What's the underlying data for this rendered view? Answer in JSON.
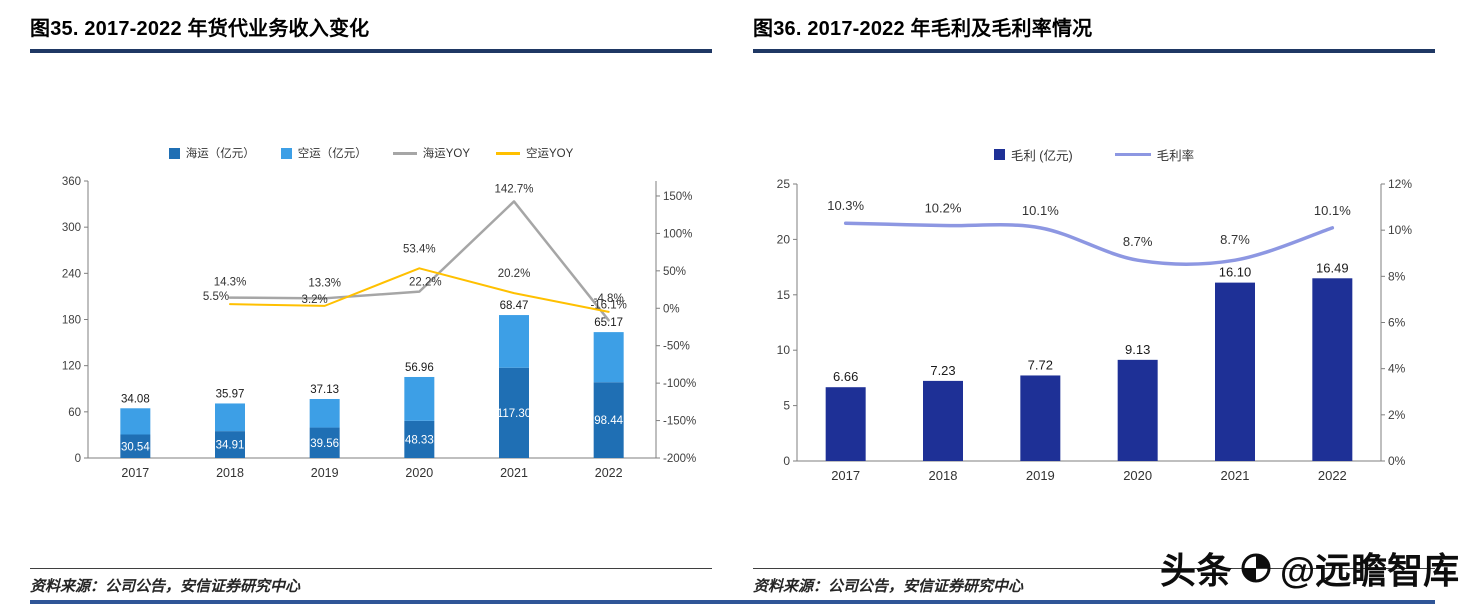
{
  "figures": [
    {
      "title": "图35. 2017-2022 年货代业务收入变化",
      "source": "资料来源：公司公告，安信证券研究中心",
      "chart_data": {
        "type": "bar",
        "subtype": "stacked-bar-with-yoy-lines-dual-axis",
        "categories": [
          "2017",
          "2018",
          "2019",
          "2020",
          "2021",
          "2022"
        ],
        "left_axis": {
          "min": 0,
          "max": 360,
          "ticks": [
            360,
            300,
            240,
            180,
            120,
            60,
            0
          ]
        },
        "right_axis": {
          "suffix": "%",
          "ticks": [
            150,
            100,
            50,
            0,
            -50,
            -100,
            -150,
            -200
          ],
          "plot_min": -200,
          "plot_max": 170
        },
        "bar_series": [
          {
            "name": "海运（亿元）",
            "color": "#1F6FB4",
            "values": [
              30.54,
              34.91,
              39.56,
              48.33,
              117.3,
              98.44
            ],
            "labels": [
              "30.54",
              "34.91",
              "39.56",
              "48.33",
              "117.30",
              "98.44"
            ],
            "label_position": "inside",
            "label_color": "#ffffff"
          },
          {
            "name": "空运（亿元）",
            "color": "#3D9FE6",
            "values": [
              34.08,
              35.97,
              37.13,
              56.96,
              68.47,
              65.17
            ],
            "labels": [
              "34.08",
              "35.97",
              "37.13",
              "56.96",
              "68.47",
              "65.17"
            ],
            "label_position": "above",
            "label_color": "#1a1a1a"
          }
        ],
        "line_series": [
          {
            "name": "海运YOY",
            "color": "#A6A6A6",
            "width": 2.5,
            "smooth": false,
            "values": [
              null,
              14.3,
              13.3,
              22.2,
              142.7,
              -16.1
            ],
            "labels": [
              null,
              "14.3%",
              "13.3%",
              "22.2%",
              "142.7%",
              "-16.1%"
            ],
            "label_dy": [
              null,
              -12,
              -12,
              -6,
              -9,
              -12
            ],
            "label_dx": [
              null,
              0,
              0,
              6,
              0,
              0
            ]
          },
          {
            "name": "空运YOY",
            "color": "#FFC000",
            "width": 2,
            "smooth": false,
            "values": [
              null,
              5.5,
              3.2,
              53.4,
              20.2,
              -4.8
            ],
            "labels": [
              null,
              "5.5%",
              "3.2%",
              "53.4%",
              "20.2%",
              "-4.8%"
            ],
            "label_dy": [
              null,
              -4,
              -3,
              -16,
              -16,
              -10
            ],
            "label_dx": [
              null,
              -14,
              -10,
              0,
              0,
              0
            ]
          }
        ],
        "legend_position": "top-center",
        "grid": false
      }
    },
    {
      "title": "图36. 2017-2022 年毛利及毛利率情况",
      "source": "资料来源：公司公告，安信证券研究中心",
      "chart_data": {
        "type": "bar",
        "subtype": "bar-with-rate-line-dual-axis",
        "categories": [
          "2017",
          "2018",
          "2019",
          "2020",
          "2021",
          "2022"
        ],
        "left_axis": {
          "min": 0,
          "max": 25,
          "ticks": [
            25,
            20,
            15,
            10,
            5,
            0
          ]
        },
        "right_axis": {
          "suffix": "%",
          "ticks": [
            12,
            10,
            8,
            6,
            4,
            2,
            0
          ],
          "plot_min": 0,
          "plot_max": 12
        },
        "bar_series": [
          {
            "name": "毛利 (亿元)",
            "color": "#1E3096",
            "values": [
              6.66,
              7.23,
              7.72,
              9.13,
              16.1,
              16.49
            ],
            "labels": [
              "6.66",
              "7.23",
              "7.72",
              "9.13",
              "16.10",
              "16.49"
            ],
            "label_position": "above",
            "label_color": "#1a1a1a"
          }
        ],
        "line_series": [
          {
            "name": "毛利率",
            "color": "#8D97E2",
            "width": 3.5,
            "smooth": true,
            "values": [
              10.3,
              10.2,
              10.1,
              8.7,
              8.7,
              10.1
            ],
            "labels": [
              "10.3%",
              "10.2%",
              "10.1%",
              "8.7%",
              "8.7%",
              "10.1%"
            ],
            "label_dy": [
              -13,
              -13,
              -13,
              -14,
              -16,
              -13
            ],
            "label_dx": [
              0,
              0,
              0,
              0,
              0,
              0
            ]
          }
        ],
        "legend_position": "top-center",
        "grid": false
      }
    }
  ],
  "watermark": {
    "prefix": "头条",
    "handle": "@远瞻智库"
  }
}
